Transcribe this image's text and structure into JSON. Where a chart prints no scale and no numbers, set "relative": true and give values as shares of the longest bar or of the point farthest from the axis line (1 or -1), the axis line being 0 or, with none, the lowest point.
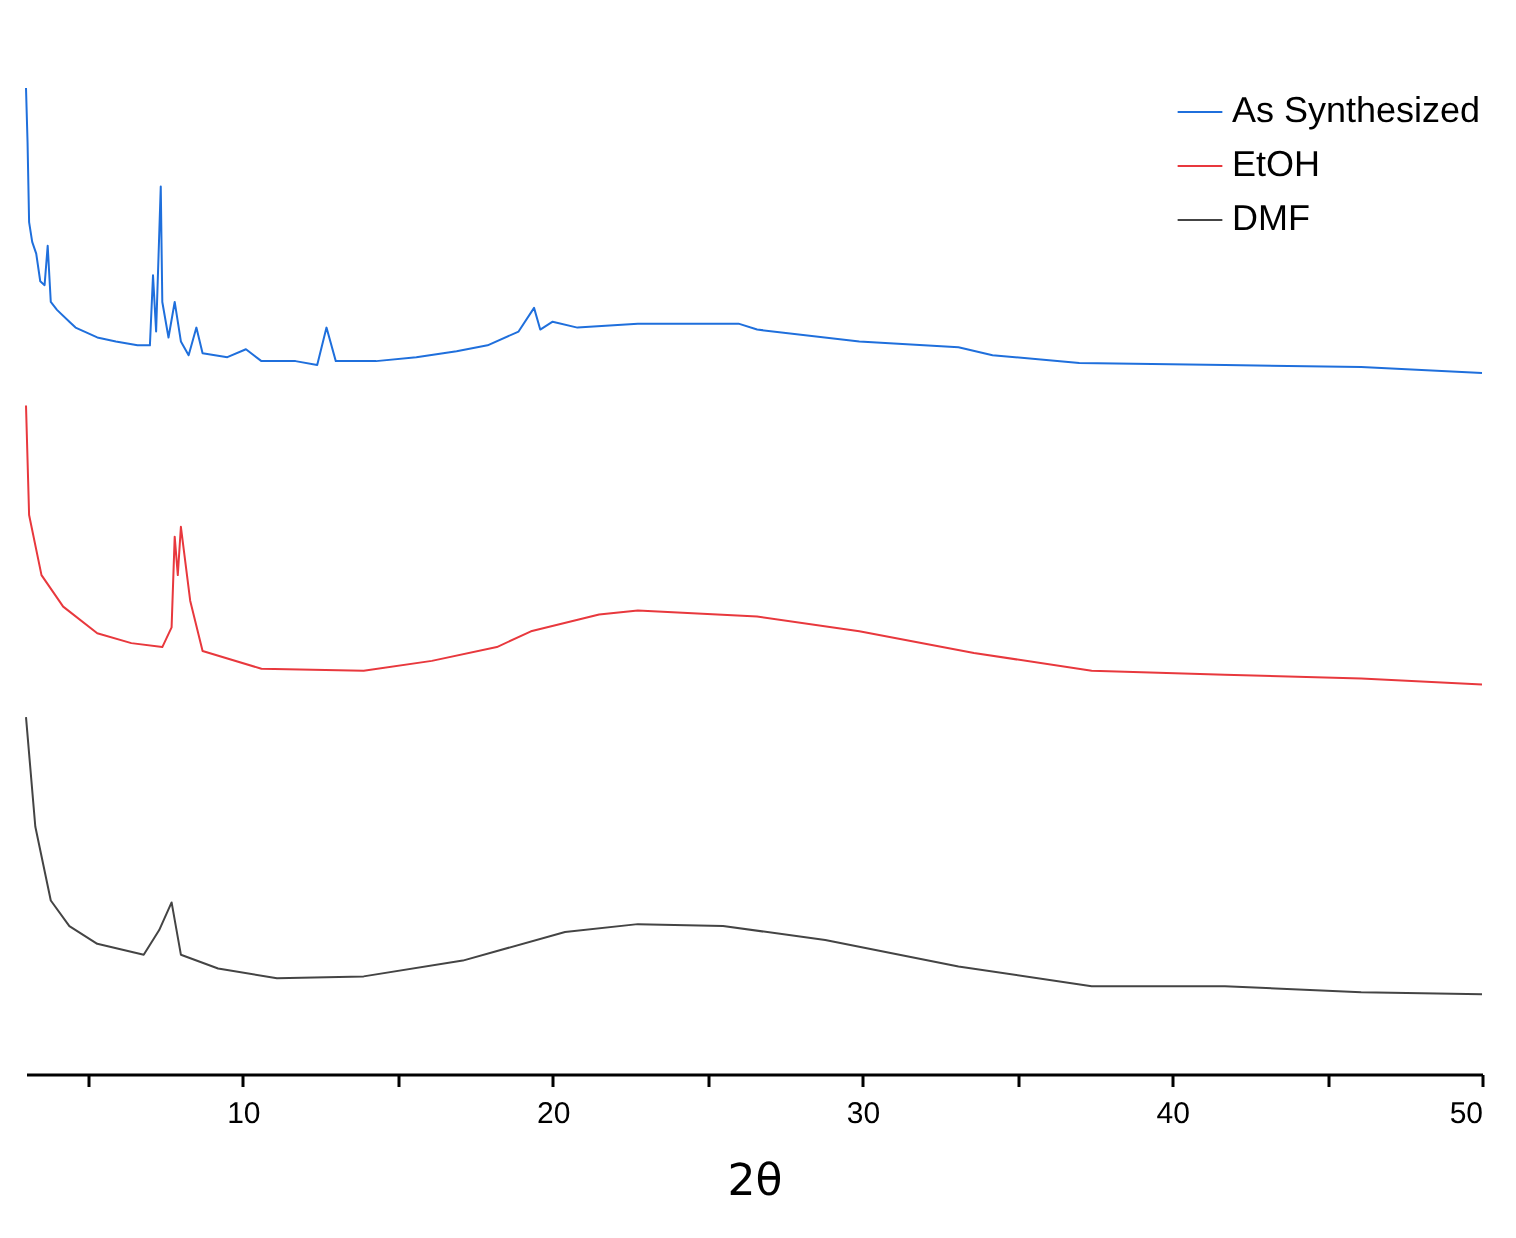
{
  "chart_data": {
    "type": "line",
    "xlabel": "2θ",
    "relative": true,
    "legend": "top right",
    "xlim": [
      3,
      50
    ],
    "xticks": [
      {
        "value": 5,
        "label": null
      },
      10,
      {
        "value": 15,
        "label": null
      },
      20,
      {
        "value": 25,
        "label": null
      },
      30,
      {
        "value": 35,
        "label": null
      },
      40,
      {
        "value": 45,
        "label": null
      },
      50
    ],
    "series": [
      {
        "name": "As Synthesized",
        "color": "#1f6fdc",
        "x": [
          3.0,
          3.05,
          3.1,
          3.2,
          3.33,
          3.46,
          3.6,
          3.7,
          3.8,
          4.0,
          4.4,
          4.6,
          5.3,
          5.9,
          6.6,
          7.0,
          7.1,
          7.2,
          7.35,
          7.4,
          7.6,
          7.8,
          8.0,
          8.25,
          8.5,
          8.7,
          9.5,
          10.1,
          10.6,
          11.7,
          12.4,
          12.7,
          13.0,
          14.3,
          15.6,
          16.9,
          17.9,
          18.9,
          19.4,
          19.6,
          20.0,
          20.8,
          22.75,
          26.0,
          26.6,
          29.9,
          33.1,
          34.2,
          37.0,
          41.7,
          46.1,
          50
        ],
        "values": [
          1.0,
          0.945,
          0.864,
          0.844,
          0.832,
          0.804,
          0.8,
          0.84,
          0.783,
          0.775,
          0.763,
          0.757,
          0.747,
          0.743,
          0.739,
          0.739,
          0.81,
          0.753,
          0.9,
          0.783,
          0.747,
          0.783,
          0.743,
          0.729,
          0.757,
          0.731,
          0.727,
          0.735,
          0.723,
          0.723,
          0.719,
          0.757,
          0.723,
          0.723,
          0.727,
          0.733,
          0.739,
          0.753,
          0.777,
          0.755,
          0.763,
          0.757,
          0.761,
          0.761,
          0.755,
          0.743,
          0.737,
          0.729,
          0.721,
          0.719,
          0.717,
          0.711
        ]
      },
      {
        "name": "EtOH",
        "color": "#e8383d",
        "x": [
          3.0,
          3.1,
          3.5,
          4.2,
          5.3,
          6.4,
          7.4,
          7.7,
          7.8,
          7.9,
          8.0,
          8.3,
          8.7,
          10.6,
          13.9,
          16.1,
          18.2,
          19.3,
          21.5,
          22.75,
          26.6,
          29.9,
          33.6,
          37.4,
          41.7,
          46.1,
          50
        ],
        "values": [
          0.678,
          0.567,
          0.506,
          0.474,
          0.447,
          0.437,
          0.433,
          0.453,
          0.545,
          0.506,
          0.555,
          0.48,
          0.429,
          0.411,
          0.409,
          0.419,
          0.433,
          0.449,
          0.466,
          0.47,
          0.464,
          0.449,
          0.427,
          0.409,
          0.405,
          0.401,
          0.395
        ]
      },
      {
        "name": "DMF",
        "color": "#444444",
        "x": [
          3.0,
          3.3,
          3.8,
          4.4,
          5.3,
          6.8,
          7.3,
          7.7,
          8.0,
          9.2,
          11.1,
          13.9,
          17.1,
          20.4,
          22.75,
          25.5,
          28.8,
          33.1,
          37.4,
          41.7,
          46.1,
          50
        ],
        "values": [
          0.362,
          0.251,
          0.176,
          0.15,
          0.132,
          0.121,
          0.146,
          0.174,
          0.121,
          0.107,
          0.097,
          0.099,
          0.115,
          0.144,
          0.152,
          0.15,
          0.136,
          0.109,
          0.089,
          0.089,
          0.083,
          0.081
        ]
      }
    ]
  }
}
